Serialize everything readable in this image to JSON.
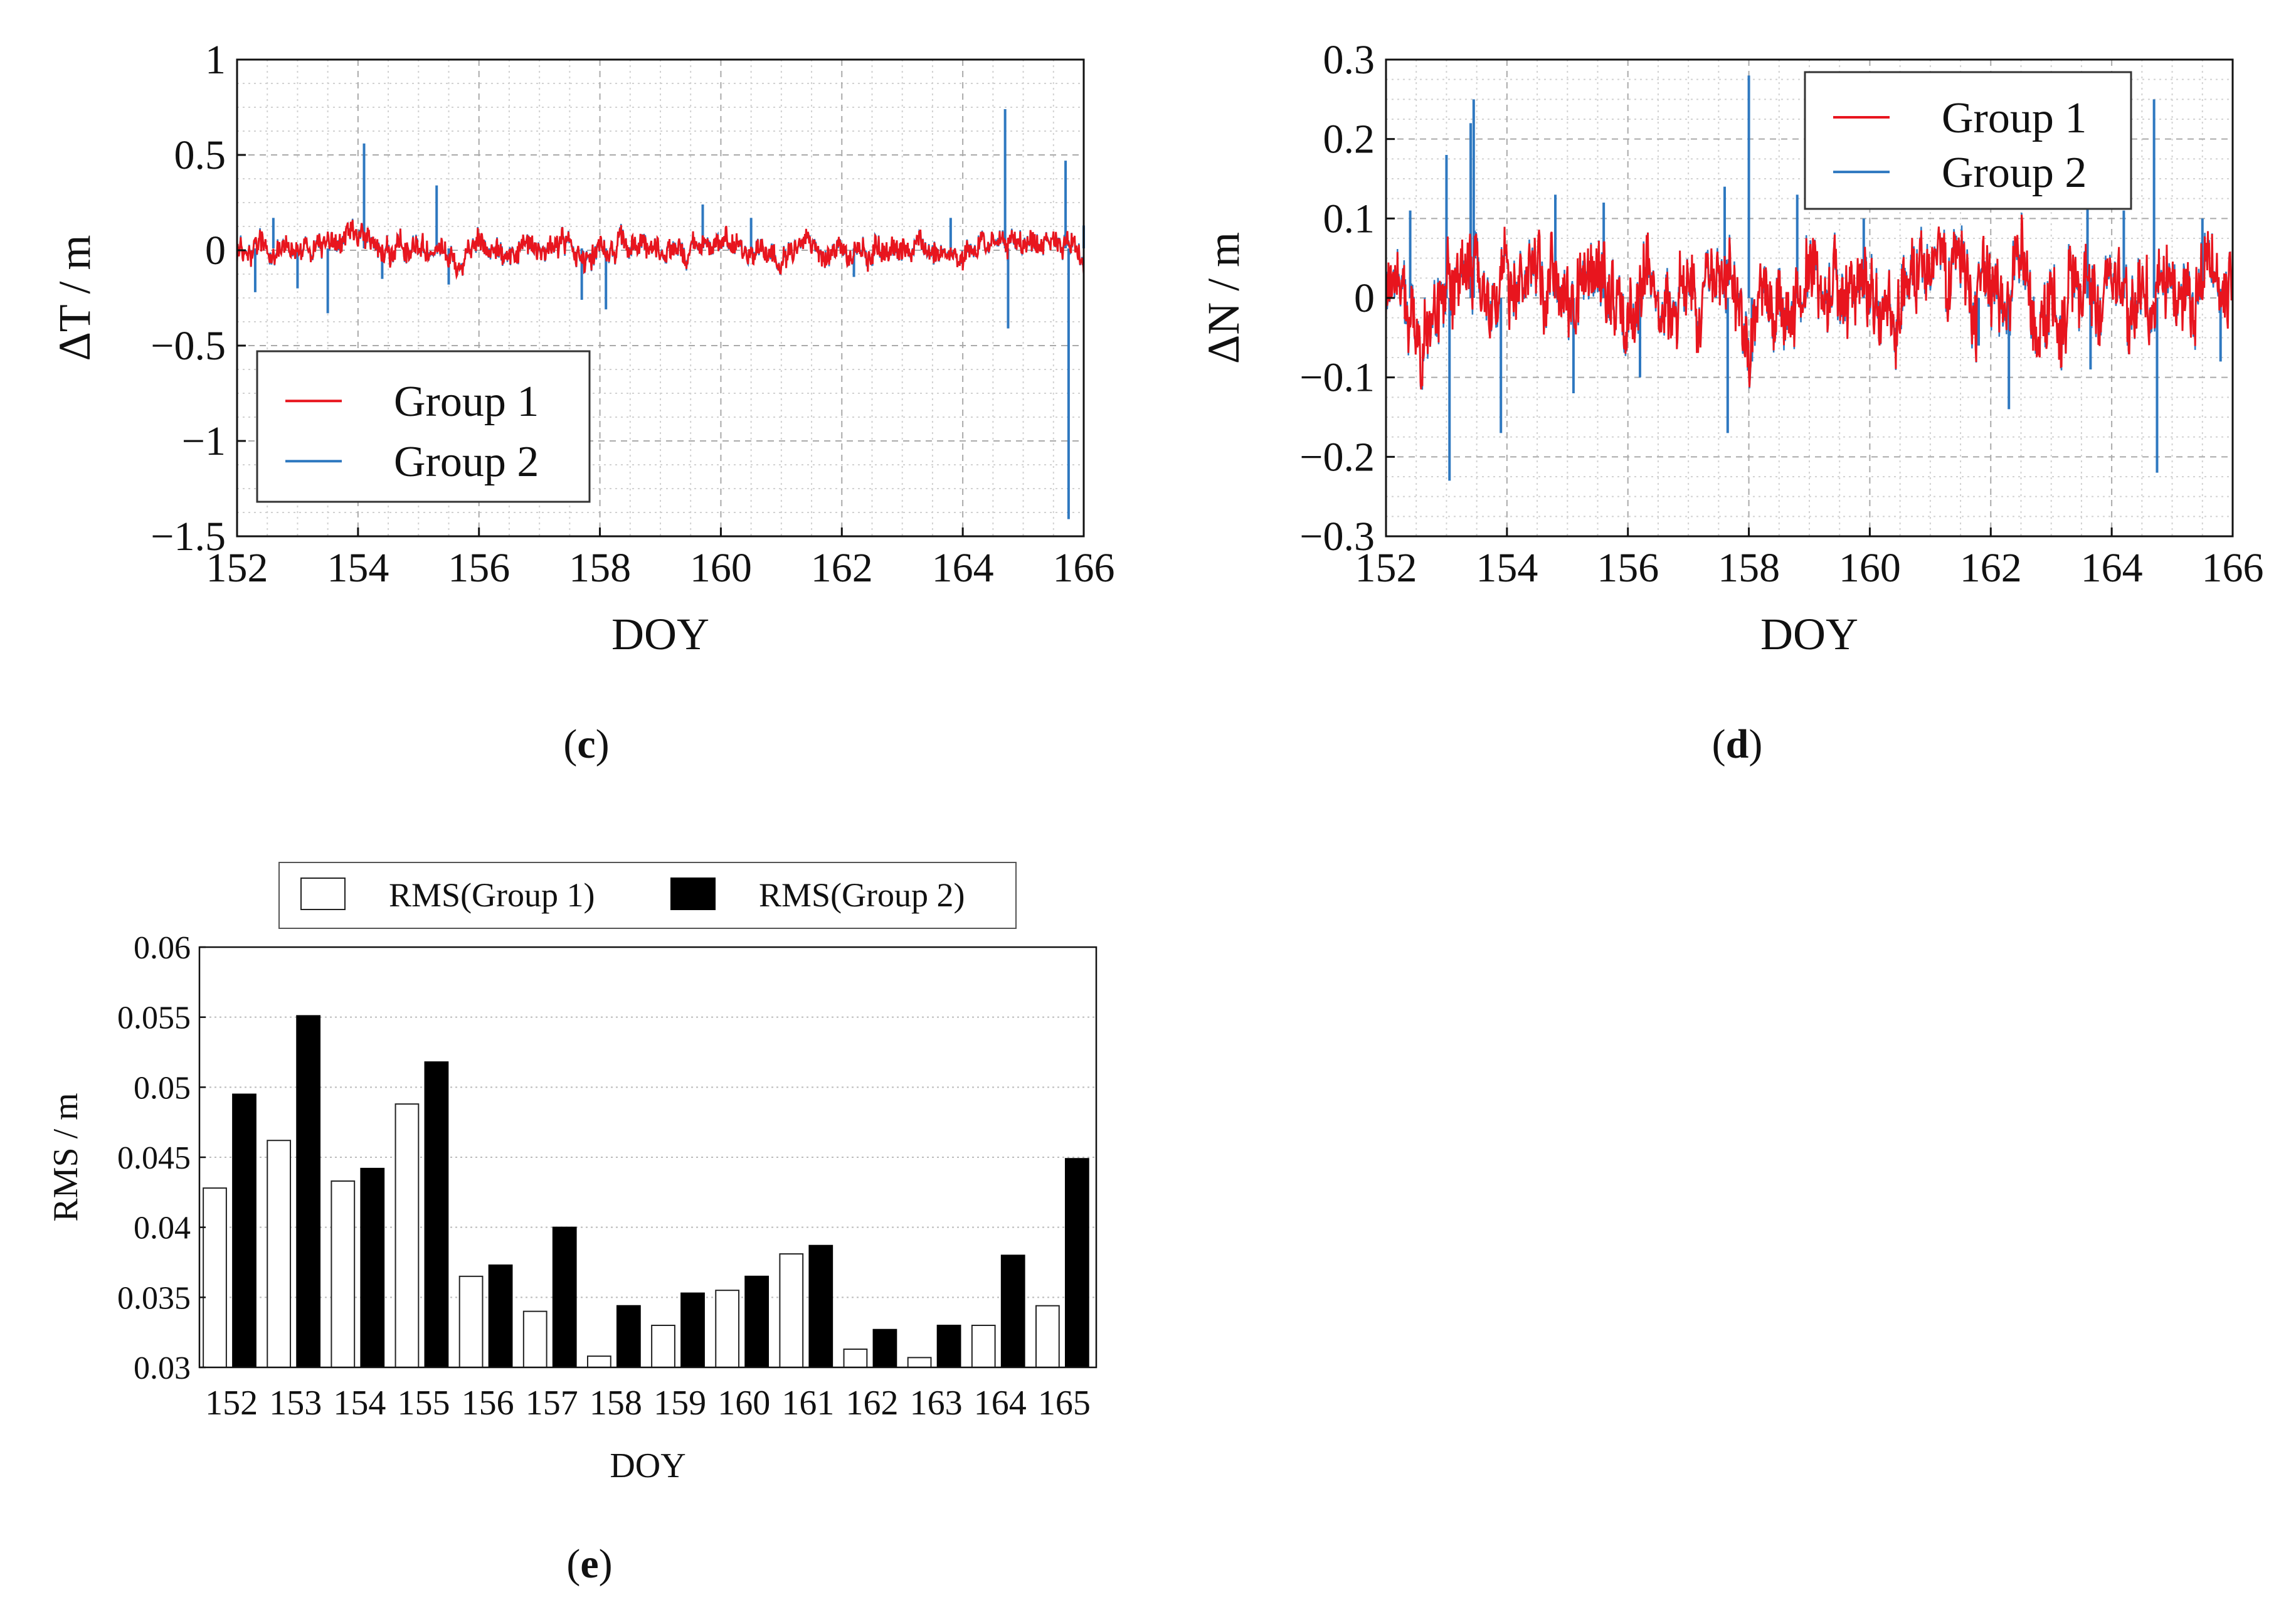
{
  "colors": {
    "group1": "#e8151e",
    "group2": "#2e78c0",
    "grid": "#aaaaaa",
    "axis": "#111111",
    "bar1_fill": "#ffffff",
    "bar2_fill": "#000000"
  },
  "panels": {
    "c": {
      "open": "(",
      "letter": "c",
      "close": ")"
    },
    "d": {
      "open": "(",
      "letter": "d",
      "close": ")"
    },
    "e": {
      "open": "(",
      "letter": "e",
      "close": ")"
    }
  },
  "chart_data": [
    {
      "id": "c",
      "type": "line",
      "title": "",
      "xlabel": "DOY",
      "ylabel": "ΔT / m",
      "xlim": [
        152,
        166
      ],
      "ylim": [
        -1.5,
        1
      ],
      "xticks": [
        152,
        154,
        156,
        158,
        160,
        162,
        164,
        166
      ],
      "yticks": [
        1,
        0.5,
        0,
        -0.5,
        -1,
        -1.5
      ],
      "ytick_labels": [
        "1",
        "0.5",
        "0",
        "−0.5",
        "−1",
        "−1.5"
      ],
      "grid": true,
      "legend": {
        "position": "lower-left",
        "entries": [
          "Group 1",
          "Group 2"
        ]
      },
      "series": [
        {
          "name": "Group 1",
          "noise_amplitude": 0.06,
          "mean": 0.01,
          "description": "dense noise between about −0.08 and 0.12 over DOY 152–166"
        },
        {
          "name": "Group 2",
          "noise_amplitude": 0.06,
          "mean": 0.01,
          "spikes": [
            [
              152.3,
              -0.22
            ],
            [
              152.6,
              0.17
            ],
            [
              153.0,
              -0.2
            ],
            [
              153.5,
              -0.33
            ],
            [
              154.1,
              0.56
            ],
            [
              154.4,
              -0.15
            ],
            [
              155.3,
              0.34
            ],
            [
              155.5,
              -0.18
            ],
            [
              157.7,
              -0.26
            ],
            [
              158.1,
              -0.31
            ],
            [
              159.7,
              0.24
            ],
            [
              160.5,
              0.17
            ],
            [
              162.2,
              -0.14
            ],
            [
              163.8,
              0.17
            ],
            [
              164.7,
              0.74
            ],
            [
              164.75,
              -0.41
            ],
            [
              165.7,
              0.47
            ],
            [
              165.75,
              -1.41
            ],
            [
              166.0,
              0.13
            ]
          ]
        }
      ]
    },
    {
      "id": "d",
      "type": "line",
      "title": "",
      "xlabel": "DOY",
      "ylabel": "ΔN / m",
      "xlim": [
        152,
        166
      ],
      "ylim": [
        -0.3,
        0.3
      ],
      "xticks": [
        152,
        154,
        156,
        158,
        160,
        162,
        164,
        166
      ],
      "yticks": [
        0.3,
        0.2,
        0.1,
        0,
        -0.1,
        -0.2,
        -0.3
      ],
      "ytick_labels": [
        "0.3",
        "0.2",
        "0.1",
        "0",
        "−0.1",
        "−0.2",
        "−0.3"
      ],
      "grid": true,
      "legend": {
        "position": "top-right",
        "entries": [
          "Group 1",
          "Group 2"
        ]
      },
      "series": [
        {
          "name": "Group 1",
          "noise_amplitude": 0.045,
          "mean": 0.0,
          "description": "wandering noise between about −0.17 and 0.12 over DOY 152–166"
        },
        {
          "name": "Group 2",
          "noise_amplitude": 0.045,
          "mean": 0.0,
          "spikes": [
            [
              152.4,
              0.11
            ],
            [
              153.0,
              0.18
            ],
            [
              153.05,
              -0.23
            ],
            [
              153.4,
              0.22
            ],
            [
              153.45,
              0.25
            ],
            [
              153.9,
              -0.17
            ],
            [
              154.8,
              0.13
            ],
            [
              155.1,
              -0.12
            ],
            [
              155.6,
              0.12
            ],
            [
              156.2,
              -0.1
            ],
            [
              157.6,
              0.14
            ],
            [
              157.65,
              -0.17
            ],
            [
              158.0,
              0.28
            ],
            [
              158.05,
              -0.08
            ],
            [
              158.8,
              0.13
            ],
            [
              159.9,
              0.1
            ],
            [
              161.8,
              -0.06
            ],
            [
              162.3,
              -0.14
            ],
            [
              163.6,
              0.13
            ],
            [
              163.65,
              -0.09
            ],
            [
              164.2,
              0.11
            ],
            [
              164.7,
              0.25
            ],
            [
              164.75,
              -0.22
            ],
            [
              165.5,
              0.1
            ],
            [
              165.8,
              -0.08
            ]
          ]
        }
      ]
    },
    {
      "id": "e",
      "type": "bar",
      "title": "",
      "xlabel": "DOY",
      "ylabel": "RMS / m",
      "ylim": [
        0.03,
        0.06
      ],
      "yticks": [
        0.06,
        0.055,
        0.05,
        0.045,
        0.04,
        0.035,
        0.03
      ],
      "ytick_labels": [
        "0.06",
        "0.055",
        "0.05",
        "0.045",
        "0.04",
        "0.035",
        "0.03"
      ],
      "grid": true,
      "legend": {
        "position": "top",
        "entries": [
          "RMS(Group 1)",
          "RMS(Group 2)"
        ]
      },
      "categories": [
        "152",
        "153",
        "154",
        "155",
        "156",
        "157",
        "158",
        "159",
        "160",
        "161",
        "162",
        "163",
        "164",
        "165"
      ],
      "series": [
        {
          "name": "RMS(Group 1)",
          "values": [
            0.0428,
            0.0462,
            0.0433,
            0.0488,
            0.0365,
            0.034,
            0.0308,
            0.033,
            0.0355,
            0.0381,
            0.0313,
            0.0307,
            0.033,
            0.0344
          ]
        },
        {
          "name": "RMS(Group 2)",
          "values": [
            0.0495,
            0.0551,
            0.0442,
            0.0518,
            0.0373,
            0.04,
            0.0344,
            0.0353,
            0.0365,
            0.0387,
            0.0327,
            0.033,
            0.038,
            0.0449
          ]
        }
      ]
    }
  ]
}
